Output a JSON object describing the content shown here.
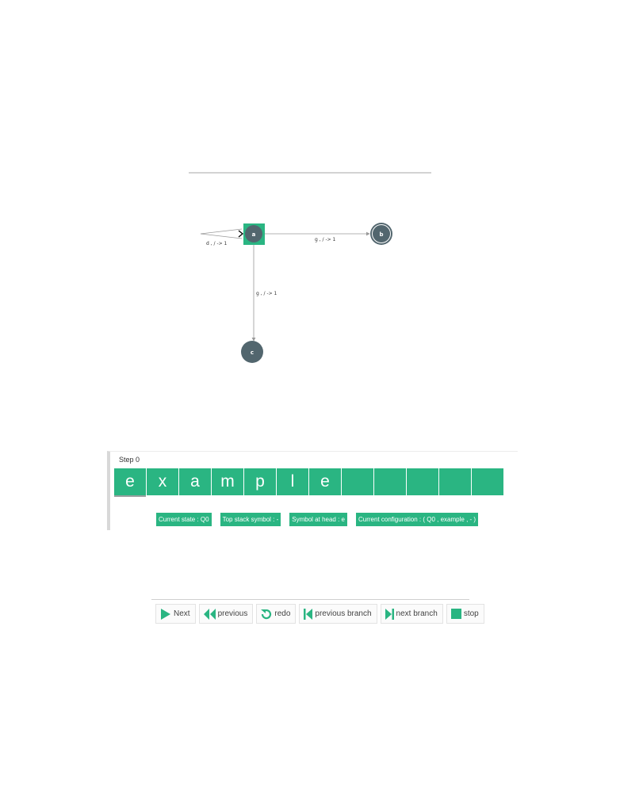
{
  "graph": {
    "states": [
      {
        "name": "a",
        "initial": true,
        "accepting": false,
        "highlighted": true
      },
      {
        "name": "b",
        "initial": false,
        "accepting": true,
        "highlighted": false
      },
      {
        "name": "c",
        "initial": false,
        "accepting": false,
        "highlighted": false
      }
    ],
    "transitions": [
      {
        "from": "start",
        "to": "a",
        "label": "d , / -> 1"
      },
      {
        "from": "a",
        "to": "b",
        "label": "g , / -> 1"
      },
      {
        "from": "a",
        "to": "c",
        "label": "g , / -> 1"
      }
    ],
    "colors": {
      "node": "#52666e",
      "highlight": "#2ab582",
      "edge": "#9a9a9a"
    }
  },
  "simulation": {
    "step_label": "Step 0",
    "tape": [
      "e",
      "x",
      "a",
      "m",
      "p",
      "l",
      "e",
      "",
      "",
      "",
      "",
      ""
    ],
    "head_position": 0,
    "info": {
      "current_state": "Current state : Q0",
      "top_stack_symbol": "Top stack symbol : -",
      "symbol_at_head": "Symbol at head : e",
      "current_configuration": "Current configuration : ( Q0 , example , - )"
    }
  },
  "controls": {
    "next": "Next",
    "previous": "previous",
    "redo": "redo",
    "previous_branch": "previous branch",
    "next_branch": "next branch",
    "stop": "stop"
  },
  "accent_color": "#2ab582"
}
